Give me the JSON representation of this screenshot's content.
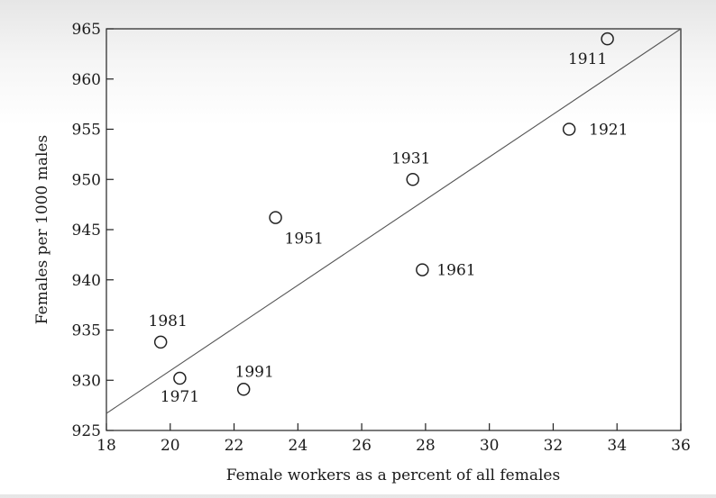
{
  "chart_data": {
    "type": "scatter",
    "title": "",
    "xlabel": "Female workers as a percent of all females",
    "ylabel": "Females per 1000 males",
    "xlim": [
      18,
      36
    ],
    "ylim": [
      925,
      965
    ],
    "x_ticks": [
      18,
      20,
      22,
      24,
      26,
      28,
      30,
      32,
      34,
      36
    ],
    "y_ticks": [
      925,
      930,
      935,
      940,
      945,
      950,
      955,
      960,
      965
    ],
    "grid": false,
    "legend": "none",
    "points": [
      {
        "label": "1911",
        "x": 33.7,
        "y": 964.0
      },
      {
        "label": "1921",
        "x": 32.5,
        "y": 955.0
      },
      {
        "label": "1931",
        "x": 27.6,
        "y": 950.0
      },
      {
        "label": "1951",
        "x": 23.3,
        "y": 946.2
      },
      {
        "label": "1961",
        "x": 27.9,
        "y": 941.0
      },
      {
        "label": "1971",
        "x": 20.3,
        "y": 930.2
      },
      {
        "label": "1981",
        "x": 19.7,
        "y": 933.8
      },
      {
        "label": "1991",
        "x": 22.3,
        "y": 929.1
      }
    ],
    "trend_line": {
      "x": [
        18,
        36
      ],
      "y": [
        926.7,
        965.0
      ]
    }
  }
}
